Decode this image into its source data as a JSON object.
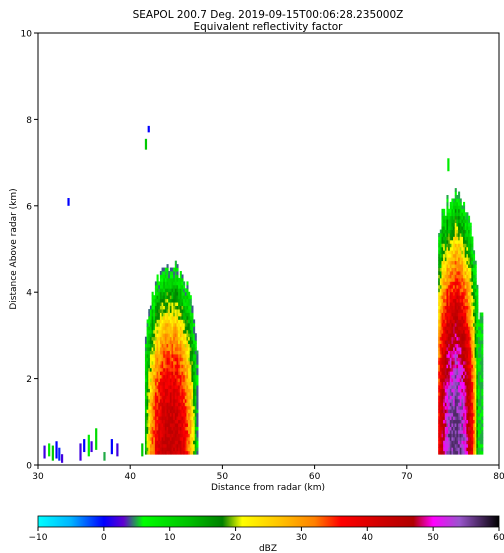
{
  "chart_data": {
    "type": "heatmap",
    "title": "SEAPOL 200.7 Deg. 2019-09-15T00:06:28.235000Z",
    "subtitle": "Equivalent reflectivity factor",
    "xlabel": "Distance from radar (km)",
    "ylabel": "Distance Above radar  (km)",
    "xlim": [
      30,
      80
    ],
    "ylim": [
      0,
      10
    ],
    "x_ticks": [
      30,
      40,
      50,
      60,
      70,
      80
    ],
    "y_ticks": [
      0,
      2,
      4,
      6,
      8,
      10
    ],
    "grid": false,
    "colorbar": {
      "label": "dBZ",
      "range": [
        -10,
        60
      ],
      "ticks": [
        -10,
        0,
        10,
        20,
        30,
        40,
        50,
        60
      ],
      "tick_labels": [
        "−10",
        "0",
        "10",
        "20",
        "30",
        "40",
        "50",
        "60"
      ],
      "stops": [
        {
          "value": -10,
          "color": "#00ffff"
        },
        {
          "value": -5,
          "color": "#00b4ff"
        },
        {
          "value": 0,
          "color": "#0000ff"
        },
        {
          "value": 3,
          "color": "#6000d0"
        },
        {
          "value": 6,
          "color": "#00ff00"
        },
        {
          "value": 13,
          "color": "#00c000"
        },
        {
          "value": 18,
          "color": "#008000"
        },
        {
          "value": 21,
          "color": "#ffff00"
        },
        {
          "value": 27,
          "color": "#ffc000"
        },
        {
          "value": 32,
          "color": "#ff8000"
        },
        {
          "value": 36,
          "color": "#ff0000"
        },
        {
          "value": 42,
          "color": "#d00000"
        },
        {
          "value": 47,
          "color": "#b00000"
        },
        {
          "value": 50,
          "color": "#ff00ff"
        },
        {
          "value": 54,
          "color": "#9955cc"
        },
        {
          "value": 60,
          "color": "#000000"
        }
      ]
    },
    "echoes": [
      {
        "name": "left-storm-core",
        "x_range": [
          41.6,
          47.2
        ],
        "x_peak": 44.3,
        "y_top": 4.7,
        "max_dbz": 45,
        "min_dbz": 4
      },
      {
        "name": "right-storm-core",
        "x_range": [
          73.4,
          78.2
        ],
        "x_peak": 75.2,
        "y_top": 6.5,
        "max_dbz": 57,
        "min_dbz": 5
      }
    ],
    "scatter_echoes": [
      {
        "x": 30.7,
        "y": 0.15,
        "h": 0.3,
        "dbz": 2
      },
      {
        "x": 31.2,
        "y": 0.2,
        "h": 0.3,
        "dbz": 8
      },
      {
        "x": 31.6,
        "y": 0.1,
        "h": 0.35,
        "dbz": 12
      },
      {
        "x": 32.0,
        "y": 0.15,
        "h": 0.4,
        "dbz": 0
      },
      {
        "x": 32.3,
        "y": 0.1,
        "h": 0.3,
        "dbz": -1
      },
      {
        "x": 32.6,
        "y": 0.05,
        "h": 0.2,
        "dbz": 2
      },
      {
        "x": 33.3,
        "y": 6.0,
        "h": 0.18,
        "dbz": 0
      },
      {
        "x": 34.6,
        "y": 0.1,
        "h": 0.4,
        "dbz": 2
      },
      {
        "x": 35.0,
        "y": 0.3,
        "h": 0.3,
        "dbz": 0
      },
      {
        "x": 35.5,
        "y": 0.2,
        "h": 0.5,
        "dbz": 8
      },
      {
        "x": 35.8,
        "y": 0.3,
        "h": 0.25,
        "dbz": 2
      },
      {
        "x": 36.3,
        "y": 0.35,
        "h": 0.5,
        "dbz": 10
      },
      {
        "x": 37.2,
        "y": 0.1,
        "h": 0.2,
        "dbz": 5
      },
      {
        "x": 38.0,
        "y": 0.25,
        "h": 0.35,
        "dbz": 0
      },
      {
        "x": 38.6,
        "y": 0.2,
        "h": 0.3,
        "dbz": 2
      },
      {
        "x": 41.3,
        "y": 0.2,
        "h": 0.3,
        "dbz": 12
      },
      {
        "x": 42.0,
        "y": 7.7,
        "h": 0.15,
        "dbz": 0
      },
      {
        "x": 41.7,
        "y": 7.3,
        "h": 0.25,
        "dbz": 12
      },
      {
        "x": 74.5,
        "y": 6.8,
        "h": 0.3,
        "dbz": 8
      }
    ]
  }
}
